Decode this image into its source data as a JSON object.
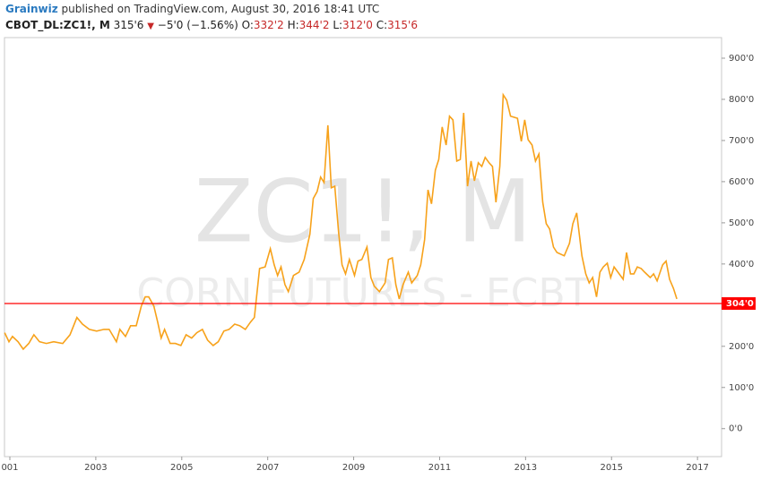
{
  "chart_data": {
    "type": "line",
    "author": "Grainwiz",
    "published": "published on TradingView.com, August 30, 2016 18:41 UTC",
    "symbol": "CBOT_DL:ZC1!, M",
    "last": "315'6",
    "change": "−5'0 (−1.56%)",
    "ohlc": [
      {
        "key": "O:",
        "value": "332'2"
      },
      {
        "key": "H:",
        "value": "344'2"
      },
      {
        "key": "L:",
        "value": "312'0"
      },
      {
        "key": "C:",
        "value": "315'6"
      }
    ],
    "watermark": "ZC1!, M",
    "watermark_subtitle": "CORN FUTURES - ECBT",
    "xlim": [
      2000.875,
      2017.56
    ],
    "ylim": [
      -68,
      950
    ],
    "xticks": [
      {
        "value": 2001,
        "label": "001"
      },
      2003,
      2005,
      2007,
      2009,
      2011,
      2013,
      2015,
      2017
    ],
    "yticks": [
      {
        "value": 0,
        "label": "0'0"
      },
      {
        "value": 100,
        "label": "100'0"
      },
      {
        "value": 200,
        "label": "200'0"
      },
      {
        "value": 300,
        "label": "300'0"
      },
      {
        "value": 400,
        "label": "400'0"
      },
      {
        "value": 500,
        "label": "500'0"
      },
      {
        "value": 600,
        "label": "600'0"
      },
      {
        "value": 700,
        "label": "700'0"
      },
      {
        "value": 800,
        "label": "800'0"
      },
      {
        "value": 900,
        "label": "900'0"
      }
    ],
    "hline": {
      "value": 304,
      "label": "304'0",
      "color": "#ff0000"
    },
    "series": [
      {
        "color": "#f7a21b",
        "x": [
          2000.88,
          2000.98,
          2001.06,
          2001.19,
          2001.31,
          2001.44,
          2001.56,
          2001.69,
          2001.85,
          2002.02,
          2002.23,
          2002.4,
          2002.56,
          2002.69,
          2002.85,
          2003.02,
          2003.19,
          2003.31,
          2003.48,
          2003.56,
          2003.69,
          2003.81,
          2003.94,
          2004.06,
          2004.15,
          2004.23,
          2004.35,
          2004.44,
          2004.52,
          2004.6,
          2004.73,
          2004.85,
          2004.98,
          2005.1,
          2005.23,
          2005.35,
          2005.48,
          2005.6,
          2005.73,
          2005.85,
          2005.98,
          2006.1,
          2006.23,
          2006.35,
          2006.48,
          2006.6,
          2006.69,
          2006.81,
          2006.94,
          2007.06,
          2007.15,
          2007.23,
          2007.31,
          2007.4,
          2007.48,
          2007.6,
          2007.73,
          2007.85,
          2007.98,
          2008.06,
          2008.15,
          2008.23,
          2008.31,
          2008.4,
          2008.48,
          2008.56,
          2008.65,
          2008.73,
          2008.81,
          2008.9,
          2009.02,
          2009.1,
          2009.19,
          2009.31,
          2009.4,
          2009.48,
          2009.6,
          2009.73,
          2009.81,
          2009.9,
          2009.98,
          2010.06,
          2010.15,
          2010.27,
          2010.35,
          2010.48,
          2010.56,
          2010.65,
          2010.73,
          2010.81,
          2010.9,
          2010.98,
          2011.06,
          2011.15,
          2011.23,
          2011.31,
          2011.4,
          2011.48,
          2011.56,
          2011.65,
          2011.73,
          2011.81,
          2011.9,
          2011.98,
          2012.06,
          2012.15,
          2012.23,
          2012.31,
          2012.4,
          2012.48,
          2012.56,
          2012.65,
          2012.81,
          2012.9,
          2012.98,
          2013.06,
          2013.15,
          2013.23,
          2013.31,
          2013.4,
          2013.48,
          2013.56,
          2013.65,
          2013.73,
          2013.9,
          2014.02,
          2014.1,
          2014.19,
          2014.31,
          2014.4,
          2014.48,
          2014.56,
          2014.65,
          2014.73,
          2014.81,
          2014.9,
          2014.98,
          2015.06,
          2015.15,
          2015.27,
          2015.35,
          2015.44,
          2015.52,
          2015.6,
          2015.69,
          2015.77,
          2015.9,
          2015.98,
          2016.06,
          2016.19,
          2016.27,
          2016.35,
          2016.44,
          2016.52
        ],
        "values": [
          233,
          211,
          224,
          211,
          193,
          207,
          228,
          211,
          207,
          211,
          207,
          228,
          270,
          254,
          241,
          237,
          241,
          241,
          211,
          241,
          224,
          250,
          250,
          298,
          320,
          320,
          298,
          259,
          220,
          241,
          207,
          207,
          202,
          228,
          220,
          233,
          241,
          215,
          202,
          211,
          237,
          241,
          254,
          250,
          241,
          259,
          270,
          389,
          393,
          437,
          398,
          372,
          393,
          350,
          333,
          372,
          380,
          411,
          472,
          559,
          576,
          611,
          598,
          737,
          585,
          589,
          476,
          398,
          376,
          411,
          372,
          407,
          411,
          441,
          367,
          346,
          333,
          354,
          411,
          415,
          350,
          315,
          350,
          380,
          354,
          372,
          398,
          459,
          580,
          546,
          628,
          654,
          733,
          689,
          759,
          750,
          650,
          654,
          767,
          589,
          650,
          602,
          646,
          637,
          659,
          646,
          637,
          550,
          637,
          811,
          798,
          759,
          754,
          698,
          750,
          702,
          689,
          650,
          667,
          550,
          498,
          485,
          441,
          428,
          420,
          450,
          498,
          524,
          420,
          376,
          354,
          367,
          320,
          380,
          393,
          402,
          367,
          393,
          380,
          363,
          428,
          376,
          376,
          393,
          389,
          380,
          367,
          376,
          359,
          398,
          407,
          363,
          341,
          315
        ]
      }
    ]
  }
}
